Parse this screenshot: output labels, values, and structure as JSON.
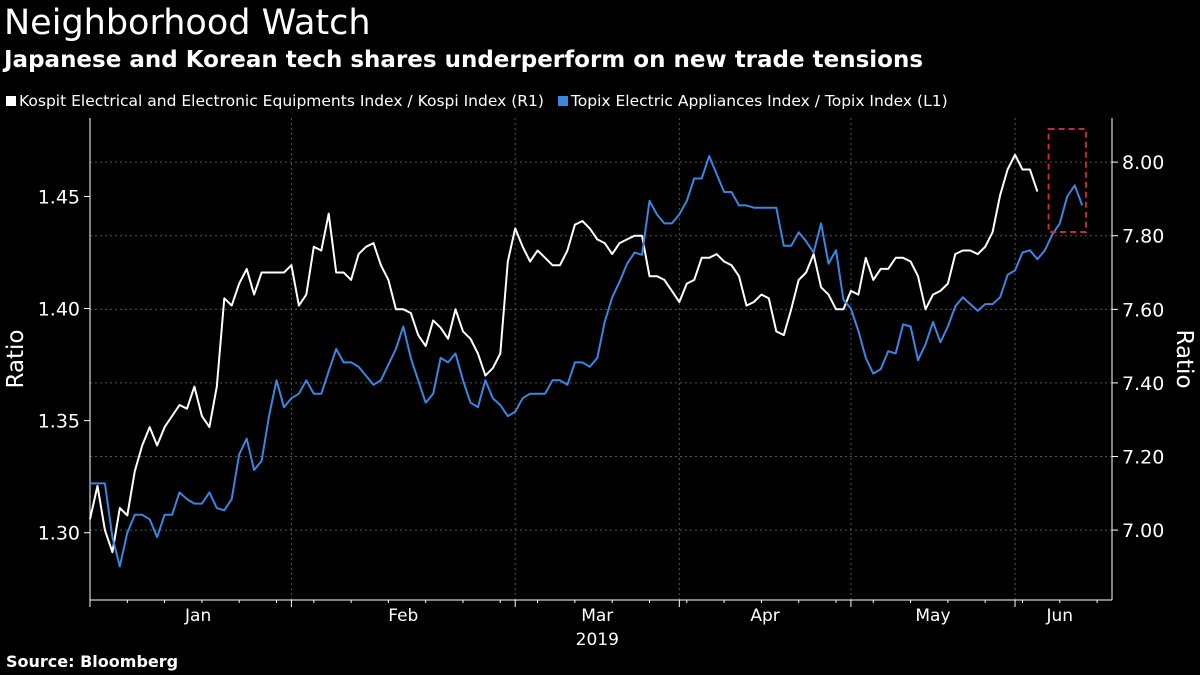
{
  "colors": {
    "background": "#000000",
    "white_series": "#ffffff",
    "blue_series": "#3a86e0",
    "highlight_box": "#c8283c",
    "grid": "#555555"
  },
  "header": {
    "title": "Neighborhood Watch",
    "subtitle": "Japanese and Korean tech shares underperform on new trade tensions"
  },
  "legend": {
    "items": [
      {
        "label": "Kospit Electrical and Electronic Equipments Index / Kospi Index (R1)",
        "color": "#ffffff"
      },
      {
        "label": "Topix Electric Appliances Index / Topix Index (L1)",
        "color": "#3a86e0"
      }
    ]
  },
  "footer": {
    "source": "Source: Bloomberg"
  },
  "chart_data": {
    "type": "line",
    "title": "Neighborhood Watch",
    "xlabel": "2019",
    "x_ticks": [
      "Jan",
      "Feb",
      "Mar",
      "Apr",
      "May",
      "Jun"
    ],
    "left_axis": {
      "label": "Ratio",
      "range": [
        1.27,
        1.485
      ],
      "ticks": [
        "1.30",
        "1.35",
        "1.40",
        "1.45"
      ]
    },
    "right_axis": {
      "label": "Ratio",
      "range": [
        6.81,
        8.12
      ],
      "ticks": [
        "7.00",
        "7.20",
        "7.40",
        "7.60",
        "7.80",
        "8.00"
      ]
    },
    "grid": true,
    "highlight": {
      "description": "dashed box around latest readings",
      "x_range": [
        128.5,
        133.5
      ],
      "right_range": [
        7.81,
        8.09
      ]
    },
    "series": [
      {
        "name": "Kospit Electrical and Electronic Equipments Index / Kospi Index (R1)",
        "axis": "right",
        "color": "#ffffff",
        "points": [
          [
            0,
            7.03
          ],
          [
            1,
            7.12
          ],
          [
            2,
            7.0
          ],
          [
            3,
            6.94
          ],
          [
            4,
            7.06
          ],
          [
            5,
            7.04
          ],
          [
            6,
            7.16
          ],
          [
            7,
            7.23
          ],
          [
            8,
            7.28
          ],
          [
            9,
            7.23
          ],
          [
            10,
            7.28
          ],
          [
            11,
            7.31
          ],
          [
            12,
            7.34
          ],
          [
            13,
            7.33
          ],
          [
            14,
            7.39
          ],
          [
            15,
            7.31
          ],
          [
            16,
            7.28
          ],
          [
            17,
            7.39
          ],
          [
            18,
            7.63
          ],
          [
            19,
            7.61
          ],
          [
            20,
            7.67
          ],
          [
            21,
            7.71
          ],
          [
            22,
            7.64
          ],
          [
            23,
            7.7
          ],
          [
            24,
            7.7
          ],
          [
            25,
            7.7
          ],
          [
            26,
            7.7
          ],
          [
            27,
            7.72
          ],
          [
            28,
            7.61
          ],
          [
            29,
            7.64
          ],
          [
            30,
            7.77
          ],
          [
            31,
            7.76
          ],
          [
            32,
            7.86
          ],
          [
            33,
            7.7
          ],
          [
            34,
            7.7
          ],
          [
            35,
            7.68
          ],
          [
            36,
            7.75
          ],
          [
            37,
            7.77
          ],
          [
            38,
            7.78
          ],
          [
            39,
            7.72
          ],
          [
            40,
            7.68
          ],
          [
            41,
            7.6
          ],
          [
            42,
            7.6
          ],
          [
            43,
            7.59
          ],
          [
            44,
            7.53
          ],
          [
            45,
            7.5
          ],
          [
            46,
            7.57
          ],
          [
            47,
            7.55
          ],
          [
            48,
            7.52
          ],
          [
            49,
            7.6
          ],
          [
            50,
            7.54
          ],
          [
            51,
            7.52
          ],
          [
            52,
            7.48
          ],
          [
            53,
            7.42
          ],
          [
            54,
            7.44
          ],
          [
            55,
            7.48
          ],
          [
            56,
            7.73
          ],
          [
            57,
            7.82
          ],
          [
            58,
            7.77
          ],
          [
            59,
            7.73
          ],
          [
            60,
            7.76
          ],
          [
            61,
            7.74
          ],
          [
            62,
            7.72
          ],
          [
            63,
            7.72
          ],
          [
            64,
            7.76
          ],
          [
            65,
            7.83
          ],
          [
            66,
            7.84
          ],
          [
            67,
            7.82
          ],
          [
            68,
            7.79
          ],
          [
            69,
            7.78
          ],
          [
            70,
            7.75
          ],
          [
            71,
            7.78
          ],
          [
            72,
            7.79
          ],
          [
            73,
            7.8
          ],
          [
            74,
            7.8
          ],
          [
            75,
            7.69
          ],
          [
            76,
            7.69
          ],
          [
            77,
            7.68
          ],
          [
            78,
            7.65
          ],
          [
            79,
            7.62
          ],
          [
            80,
            7.67
          ],
          [
            81,
            7.68
          ],
          [
            82,
            7.74
          ],
          [
            83,
            7.74
          ],
          [
            84,
            7.75
          ],
          [
            85,
            7.73
          ],
          [
            86,
            7.72
          ],
          [
            87,
            7.69
          ],
          [
            88,
            7.61
          ],
          [
            89,
            7.62
          ],
          [
            90,
            7.64
          ],
          [
            91,
            7.63
          ],
          [
            92,
            7.54
          ],
          [
            93,
            7.53
          ],
          [
            94,
            7.6
          ],
          [
            95,
            7.68
          ],
          [
            96,
            7.7
          ],
          [
            97,
            7.75
          ],
          [
            98,
            7.66
          ],
          [
            99,
            7.64
          ],
          [
            100,
            7.6
          ],
          [
            101,
            7.6
          ],
          [
            102,
            7.65
          ],
          [
            103,
            7.64
          ],
          [
            104,
            7.74
          ],
          [
            105,
            7.68
          ],
          [
            106,
            7.71
          ],
          [
            107,
            7.71
          ],
          [
            108,
            7.74
          ],
          [
            109,
            7.74
          ],
          [
            110,
            7.73
          ],
          [
            111,
            7.69
          ],
          [
            112,
            7.6
          ],
          [
            113,
            7.64
          ],
          [
            114,
            7.65
          ],
          [
            115,
            7.67
          ],
          [
            116,
            7.75
          ],
          [
            117,
            7.76
          ],
          [
            118,
            7.76
          ],
          [
            119,
            7.75
          ],
          [
            120,
            7.77
          ],
          [
            121,
            7.81
          ],
          [
            122,
            7.91
          ],
          [
            123,
            7.98
          ],
          [
            124,
            8.02
          ],
          [
            125,
            7.98
          ],
          [
            126,
            7.98
          ],
          [
            127,
            7.92
          ]
        ]
      },
      {
        "name": "Topix Electric Appliances Index / Topix Index (L1)",
        "axis": "left",
        "color": "#3a86e0",
        "points": [
          [
            0,
            1.322
          ],
          [
            1,
            1.322
          ],
          [
            2,
            1.322
          ],
          [
            3,
            1.298
          ],
          [
            4,
            1.285
          ],
          [
            5,
            1.3
          ],
          [
            6,
            1.308
          ],
          [
            7,
            1.308
          ],
          [
            8,
            1.306
          ],
          [
            9,
            1.298
          ],
          [
            10,
            1.308
          ],
          [
            11,
            1.308
          ],
          [
            12,
            1.318
          ],
          [
            13,
            1.315
          ],
          [
            14,
            1.313
          ],
          [
            15,
            1.313
          ],
          [
            16,
            1.318
          ],
          [
            17,
            1.311
          ],
          [
            18,
            1.31
          ],
          [
            19,
            1.315
          ],
          [
            20,
            1.335
          ],
          [
            21,
            1.342
          ],
          [
            22,
            1.328
          ],
          [
            23,
            1.332
          ],
          [
            24,
            1.352
          ],
          [
            25,
            1.368
          ],
          [
            26,
            1.356
          ],
          [
            27,
            1.36
          ],
          [
            28,
            1.362
          ],
          [
            29,
            1.368
          ],
          [
            30,
            1.362
          ],
          [
            31,
            1.362
          ],
          [
            32,
            1.372
          ],
          [
            33,
            1.382
          ],
          [
            34,
            1.376
          ],
          [
            35,
            1.376
          ],
          [
            36,
            1.374
          ],
          [
            37,
            1.37
          ],
          [
            38,
            1.366
          ],
          [
            39,
            1.368
          ],
          [
            40,
            1.375
          ],
          [
            41,
            1.382
          ],
          [
            42,
            1.392
          ],
          [
            43,
            1.378
          ],
          [
            44,
            1.368
          ],
          [
            45,
            1.358
          ],
          [
            46,
            1.362
          ],
          [
            47,
            1.378
          ],
          [
            48,
            1.376
          ],
          [
            49,
            1.38
          ],
          [
            50,
            1.368
          ],
          [
            51,
            1.358
          ],
          [
            52,
            1.356
          ],
          [
            53,
            1.368
          ],
          [
            54,
            1.36
          ],
          [
            55,
            1.357
          ],
          [
            56,
            1.352
          ],
          [
            57,
            1.354
          ],
          [
            58,
            1.36
          ],
          [
            59,
            1.362
          ],
          [
            60,
            1.362
          ],
          [
            61,
            1.362
          ],
          [
            62,
            1.368
          ],
          [
            63,
            1.368
          ],
          [
            64,
            1.366
          ],
          [
            65,
            1.376
          ],
          [
            66,
            1.376
          ],
          [
            67,
            1.374
          ],
          [
            68,
            1.378
          ],
          [
            69,
            1.394
          ],
          [
            70,
            1.405
          ],
          [
            71,
            1.412
          ],
          [
            72,
            1.42
          ],
          [
            73,
            1.425
          ],
          [
            74,
            1.424
          ],
          [
            75,
            1.448
          ],
          [
            76,
            1.442
          ],
          [
            77,
            1.438
          ],
          [
            78,
            1.438
          ],
          [
            79,
            1.442
          ],
          [
            80,
            1.448
          ],
          [
            81,
            1.458
          ],
          [
            82,
            1.458
          ],
          [
            83,
            1.468
          ],
          [
            84,
            1.46
          ],
          [
            85,
            1.452
          ],
          [
            86,
            1.452
          ],
          [
            87,
            1.446
          ],
          [
            88,
            1.446
          ],
          [
            89,
            1.445
          ],
          [
            90,
            1.445
          ],
          [
            91,
            1.445
          ],
          [
            92,
            1.445
          ],
          [
            93,
            1.428
          ],
          [
            94,
            1.428
          ],
          [
            95,
            1.434
          ],
          [
            96,
            1.43
          ],
          [
            97,
            1.425
          ],
          [
            98,
            1.438
          ],
          [
            99,
            1.42
          ],
          [
            100,
            1.426
          ],
          [
            101,
            1.404
          ],
          [
            102,
            1.4
          ],
          [
            103,
            1.39
          ],
          [
            104,
            1.378
          ],
          [
            105,
            1.371
          ],
          [
            106,
            1.373
          ],
          [
            107,
            1.381
          ],
          [
            108,
            1.38
          ],
          [
            109,
            1.393
          ],
          [
            110,
            1.392
          ],
          [
            111,
            1.377
          ],
          [
            112,
            1.384
          ],
          [
            113,
            1.394
          ],
          [
            114,
            1.385
          ],
          [
            115,
            1.392
          ],
          [
            116,
            1.401
          ],
          [
            117,
            1.405
          ],
          [
            118,
            1.402
          ],
          [
            119,
            1.399
          ],
          [
            120,
            1.402
          ],
          [
            121,
            1.402
          ],
          [
            122,
            1.405
          ],
          [
            123,
            1.415
          ],
          [
            124,
            1.417
          ],
          [
            125,
            1.425
          ],
          [
            126,
            1.426
          ],
          [
            127,
            1.422
          ],
          [
            128,
            1.426
          ],
          [
            129,
            1.433
          ],
          [
            130,
            1.438
          ],
          [
            131,
            1.45
          ],
          [
            132,
            1.455
          ],
          [
            133,
            1.446
          ]
        ]
      }
    ]
  }
}
